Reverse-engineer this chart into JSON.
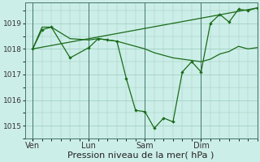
{
  "bg_color": "#cceee8",
  "line_color": "#1a6b1a",
  "grid_color": "#99ccbb",
  "xlabel": "Pression niveau de la mer( hPa )",
  "xlabel_fontsize": 8,
  "ylim": [
    1014.5,
    1019.8
  ],
  "yticks": [
    1015,
    1016,
    1017,
    1018,
    1019
  ],
  "xtick_labels": [
    "Ven",
    "Lun",
    "Sam",
    "Dim"
  ],
  "xtick_positions": [
    0,
    36,
    72,
    108
  ],
  "vline_positions": [
    0,
    36,
    72,
    108
  ],
  "xlim": [
    -5,
    144
  ],
  "series1_x": [
    0,
    6,
    12,
    24,
    36,
    42,
    48,
    54,
    60,
    66,
    72,
    78,
    84,
    90,
    96,
    102,
    108,
    114,
    120,
    126,
    132,
    138,
    144
  ],
  "series1_y": [
    1018.0,
    1018.75,
    1018.85,
    1017.65,
    1018.05,
    1018.4,
    1018.35,
    1018.3,
    1016.85,
    1015.6,
    1015.55,
    1014.9,
    1015.3,
    1015.15,
    1017.1,
    1017.5,
    1017.1,
    1019.0,
    1019.35,
    1019.05,
    1019.55,
    1019.5,
    1019.6
  ],
  "series2_x": [
    0,
    144
  ],
  "series2_y": [
    1018.0,
    1019.6
  ],
  "series3_x": [
    0,
    6,
    12,
    24,
    36,
    42,
    48,
    54,
    60,
    66,
    72,
    78,
    84,
    90,
    96,
    102,
    108,
    114,
    120,
    126,
    132,
    138,
    144
  ],
  "series3_y": [
    1018.0,
    1018.85,
    1018.85,
    1018.4,
    1018.35,
    1018.4,
    1018.35,
    1018.3,
    1018.2,
    1018.1,
    1018.0,
    1017.85,
    1017.75,
    1017.65,
    1017.6,
    1017.55,
    1017.5,
    1017.6,
    1017.8,
    1017.9,
    1018.1,
    1018.0,
    1018.05
  ],
  "figsize": [
    3.2,
    2.0
  ],
  "dpi": 100
}
